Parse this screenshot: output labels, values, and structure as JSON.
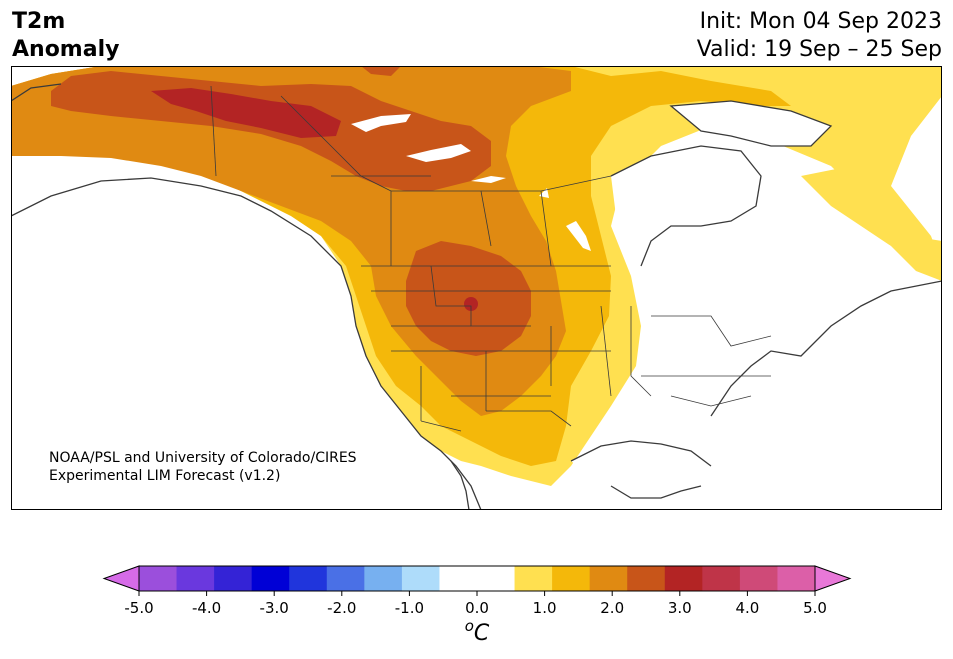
{
  "header": {
    "variable_line1": "T2m",
    "variable_line2": "Anomaly",
    "init_line": "Init: Mon 04 Sep 2023",
    "valid_line": "Valid: 19 Sep – 25 Sep"
  },
  "credit": {
    "line1": "NOAA/PSL and University of Colorado/CIRES",
    "line2": "Experimental LIM Forecast (v1.2)"
  },
  "colorbar": {
    "unit_label": "°C",
    "unit_base": "o",
    "unit_main": "C",
    "tick_labels": [
      "-5.0",
      "-4.0",
      "-3.0",
      "-2.0",
      "-1.0",
      "0.0",
      "1.0",
      "2.0",
      "3.0",
      "4.0",
      "5.0"
    ],
    "level_colors": [
      "#d66be8",
      "#9b4fdc",
      "#6a38de",
      "#3423d6",
      "#0000d6",
      "#2035dc",
      "#4a70e6",
      "#77b0f0",
      "#aedcfa",
      "#ffffff",
      "#ffffff",
      "#ffe050",
      "#f4b80a",
      "#e08a12",
      "#c85519",
      "#b32424",
      "#bf3448",
      "#cf4a78",
      "#dc5fa8",
      "#e878d8"
    ]
  },
  "map": {
    "anomaly_colors": {
      "0.5-1.0": "#ffe050",
      "1.0-1.5": "#f4b80a",
      "1.5-2.0": "#e08a12",
      "2.0-2.5": "#c85519",
      "2.5-3.0": "#b32424"
    },
    "water_color": "#ffffff",
    "coast_color": "#3a3a3a"
  }
}
